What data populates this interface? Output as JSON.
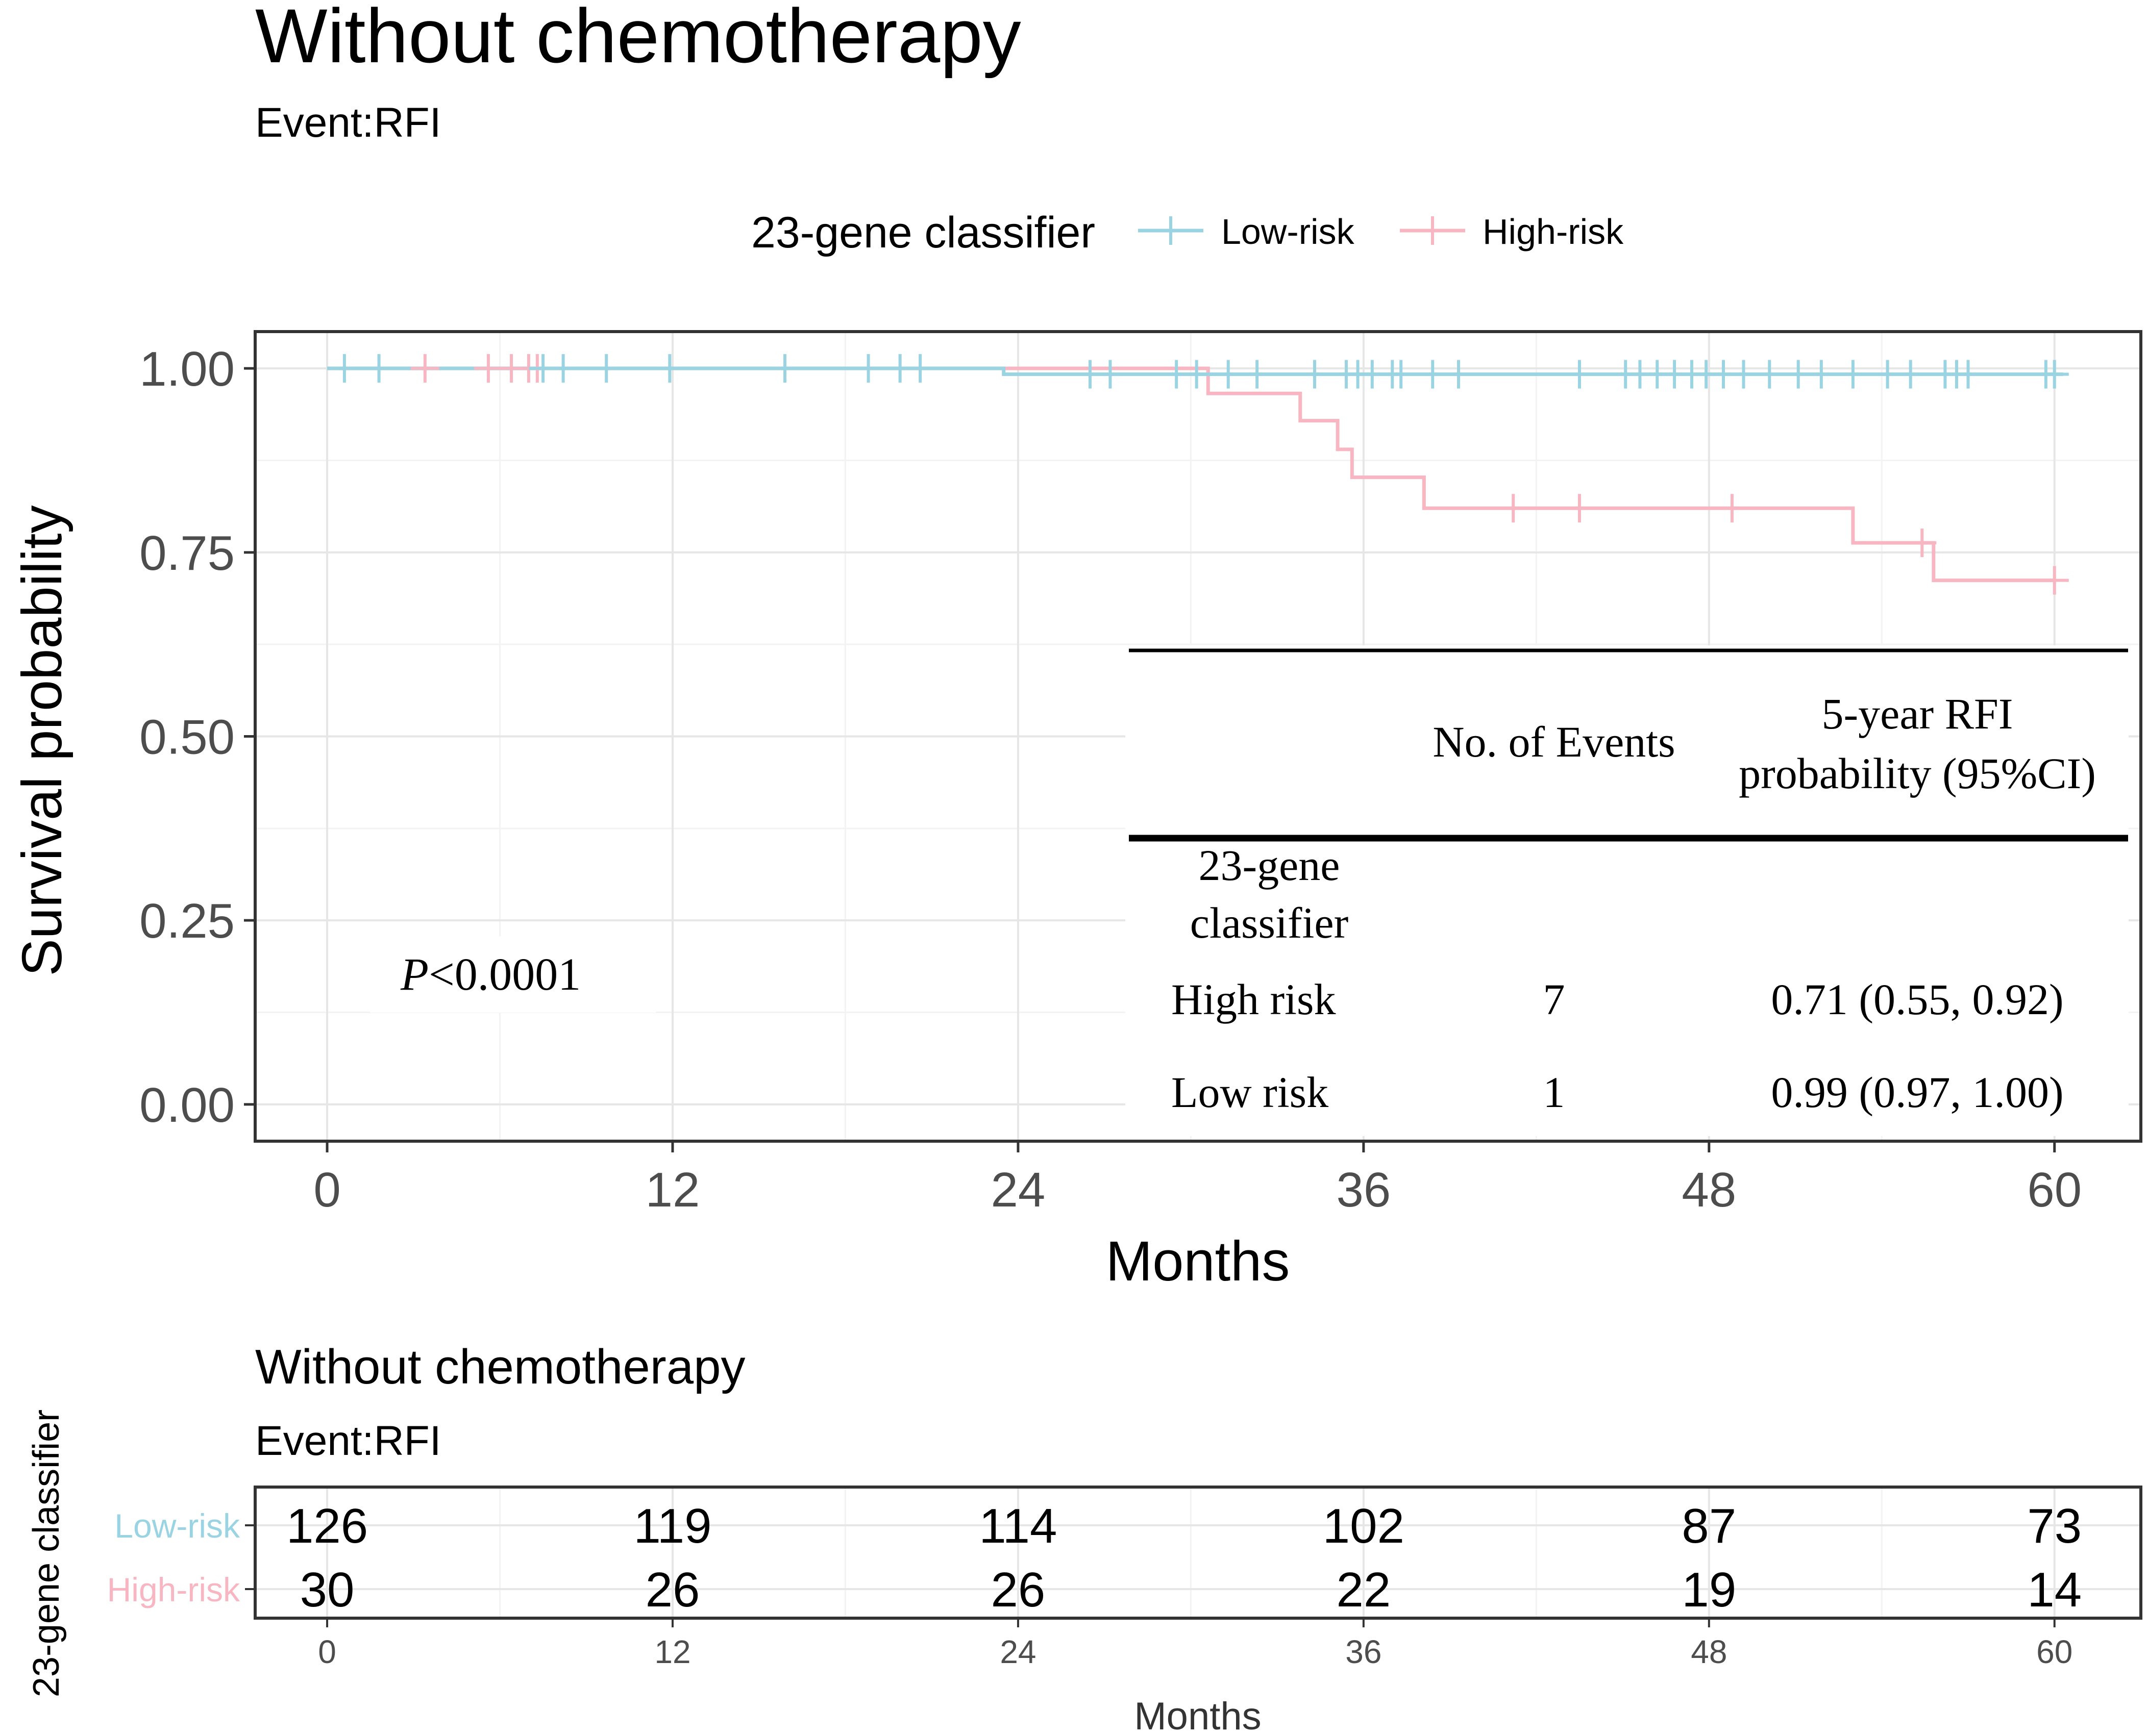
{
  "colors": {
    "low_risk": "#9ad3e2",
    "high_risk": "#f7b6c2",
    "grid_major": "#e6e6e6",
    "grid_minor": "#f3f3f3",
    "axis": "#333333",
    "tick_label": "#4d4d4d"
  },
  "chart_data": [
    {
      "type": "line",
      "subtype": "kaplan-meier",
      "title": "Without chemotherapy",
      "subtitle": "Event:RFI",
      "xlabel": "Months",
      "ylabel": "Survival probability",
      "xlim": [
        -2.5,
        63
      ],
      "ylim": [
        -0.05,
        1.05
      ],
      "x_ticks": [
        0,
        12,
        24,
        36,
        48,
        60
      ],
      "x_tick_labels": [
        "0",
        "12",
        "24",
        "36",
        "48",
        "60"
      ],
      "y_ticks": [
        0,
        0.25,
        0.5,
        0.75,
        1.0
      ],
      "y_tick_labels": [
        "0.00",
        "0.25",
        "0.50",
        "0.75",
        "1.00"
      ],
      "grid": true,
      "legend": {
        "title": "23-gene classifier",
        "position": "top",
        "entries": [
          "Low-risk",
          "High-risk"
        ]
      },
      "series": [
        {
          "name": "Low-risk",
          "color_key": "low_risk",
          "steps": [
            [
              0,
              1.0
            ],
            [
              23.5,
              0.992
            ],
            [
              60.3,
              0.992
            ]
          ],
          "censors": [
            0.6,
            1.8,
            7.5,
            8.2,
            9.7,
            11.9,
            15.9,
            18.8,
            19.9,
            20.6,
            26.5,
            27.2,
            29.5,
            30.2,
            31.3,
            32.3,
            34.3,
            35.4,
            35.8,
            36.3,
            37.0,
            37.3,
            38.4,
            39.3,
            43.5,
            45.1,
            45.6,
            46.2,
            46.8,
            47.4,
            47.9,
            48.5,
            49.2,
            50.1,
            51.1,
            51.9,
            53.0,
            54.2,
            55.0,
            56.2,
            56.6,
            57.0,
            59.7,
            60.0
          ],
          "censor_y": [
            1.0,
            1.0,
            1.0,
            1.0,
            1.0,
            1.0,
            1.0,
            1.0,
            1.0,
            1.0,
            0.992,
            0.992,
            0.992,
            0.992,
            0.992,
            0.992,
            0.992,
            0.992,
            0.992,
            0.992,
            0.992,
            0.992,
            0.992,
            0.992,
            0.992,
            0.992,
            0.992,
            0.992,
            0.992,
            0.992,
            0.992,
            0.992,
            0.992,
            0.992,
            0.992,
            0.992,
            0.992,
            0.992,
            0.992,
            0.992,
            0.992,
            0.992,
            0.992,
            0.992
          ]
        },
        {
          "name": "High-risk",
          "color_key": "high_risk",
          "steps": [
            [
              0,
              1.0
            ],
            [
              30.6,
              0.966
            ],
            [
              33.8,
              0.929
            ],
            [
              35.1,
              0.89
            ],
            [
              35.6,
              0.852
            ],
            [
              38.1,
              0.81
            ],
            [
              53.0,
              0.763
            ],
            [
              55.8,
              0.712
            ],
            [
              60.0,
              0.712
            ]
          ],
          "censors": [
            3.4,
            5.6,
            6.4,
            7.0,
            7.3
          ],
          "censor_y": [
            1.0,
            1.0,
            1.0,
            1.0,
            1.0
          ],
          "late_censors": [
            41.2,
            43.5,
            48.8,
            55.4,
            60.0
          ],
          "late_censor_y": [
            0.81,
            0.81,
            0.81,
            0.763,
            0.712
          ]
        }
      ],
      "annotation": {
        "p_symbol": "P",
        "p_value": "<0.0001"
      },
      "inset_table": {
        "headers": [
          "",
          "No. of Events",
          "5-year RFI probability (95%CI)"
        ],
        "header_prob_line1": "5-year RFI",
        "header_prob_line2": "probability (95%CI)",
        "group_label_line1": "23-gene",
        "group_label_line2": "classifier",
        "rows": [
          {
            "label": "High risk",
            "events": "7",
            "prob": "0.71 (0.55, 0.92)"
          },
          {
            "label": "Low risk",
            "events": "1",
            "prob": "0.99 (0.97, 1.00)"
          }
        ]
      }
    },
    {
      "type": "table",
      "subtype": "risk-table",
      "title": "Without chemotherapy",
      "subtitle": "Event:RFI",
      "xlabel": "Months",
      "ylabel": "23-gene classifier",
      "x_ticks": [
        0,
        12,
        24,
        36,
        48,
        60
      ],
      "x_tick_labels": [
        "0",
        "12",
        "24",
        "36",
        "48",
        "60"
      ],
      "rows": [
        {
          "name": "Low-risk",
          "color_key": "low_risk",
          "values": [
            "126",
            "119",
            "114",
            "102",
            "87",
            "73"
          ]
        },
        {
          "name": "High-risk",
          "color_key": "high_risk",
          "values": [
            "30",
            "26",
            "26",
            "22",
            "19",
            "14"
          ]
        }
      ]
    }
  ]
}
